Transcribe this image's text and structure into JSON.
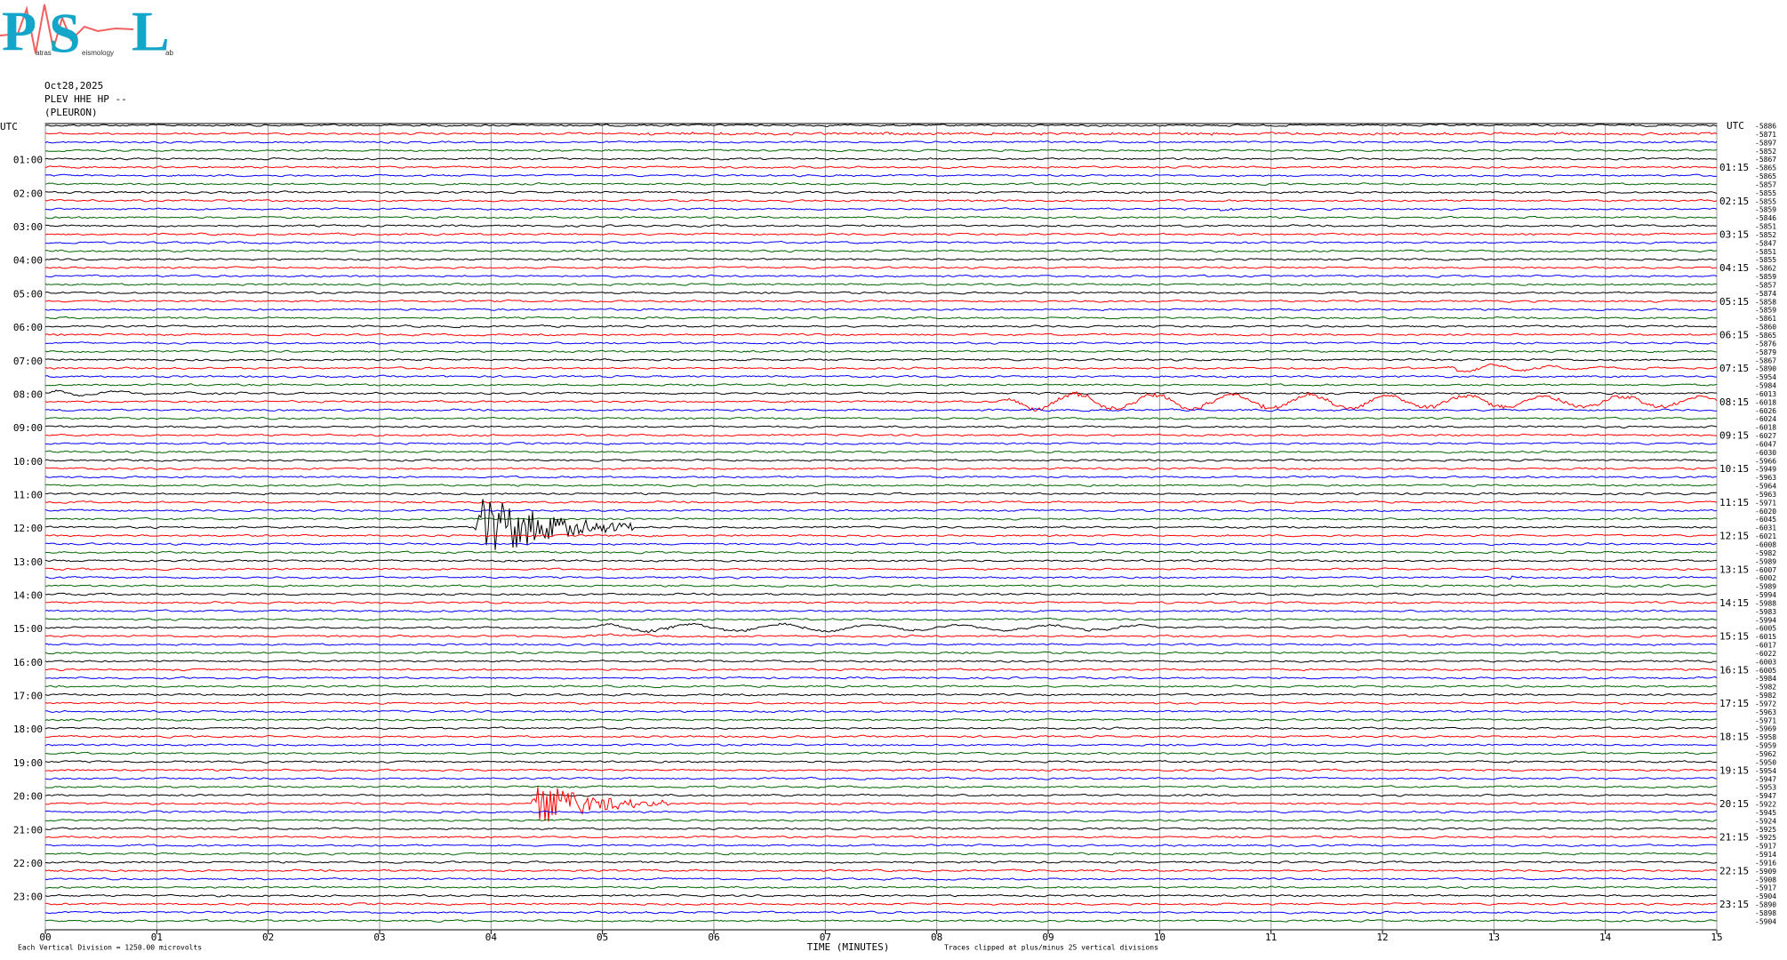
{
  "logo": {
    "letters": [
      "P",
      "S",
      "L"
    ],
    "words": [
      "atras",
      "eismology",
      "ab"
    ]
  },
  "header": {
    "date": "Oct28,2025",
    "station": "PLEV HHE HP --",
    "location": "(PLEURON)"
  },
  "left_labels": [
    "UTC",
    "01:00",
    "02:00",
    "03:00",
    "04:00",
    "05:00",
    "06:00",
    "07:00",
    "08:00",
    "09:00",
    "10:00",
    "11:00",
    "12:00",
    "13:00",
    "14:00",
    "15:00",
    "16:00",
    "17:00",
    "18:00",
    "19:00",
    "20:00",
    "21:00",
    "22:00",
    "23:00"
  ],
  "right_labels": [
    "UTC",
    "01:15",
    "02:15",
    "03:15",
    "04:15",
    "05:15",
    "06:15",
    "07:15",
    "08:15",
    "09:15",
    "10:15",
    "11:15",
    "12:15",
    "13:15",
    "14:15",
    "15:15",
    "16:15",
    "17:15",
    "18:15",
    "19:15",
    "20:15",
    "21:15",
    "22:15",
    "23:15"
  ],
  "trace_colors": [
    "#000000",
    "#ff0000",
    "#0000ff",
    "#006400"
  ],
  "trace_offsets": [
    -5886,
    -5871,
    -5897,
    -5852,
    -5867,
    -5865,
    -5865,
    -5857,
    -5855,
    -5855,
    -5859,
    -5846,
    -5851,
    -5852,
    -5847,
    -5851,
    -5855,
    -5862,
    -5859,
    -5857,
    -5874,
    -5858,
    -5859,
    -5861,
    -5860,
    -5865,
    -5876,
    -5879,
    -5867,
    -5890,
    -5954,
    -5984,
    -6013,
    -6018,
    -6026,
    -6024,
    -6018,
    -6027,
    -6047,
    -6030,
    -5966,
    -5949,
    -5963,
    -5964,
    -5963,
    -5971,
    -6020,
    -6045,
    -6031,
    -6021,
    -6008,
    -5982,
    -5989,
    -6007,
    -6002,
    -5989,
    -5994,
    -5988,
    -5983,
    -5994,
    -6005,
    -6015,
    -6017,
    -6022,
    -6003,
    -6005,
    -5984,
    -5982,
    -5982,
    -5972,
    -5963,
    -5971,
    -5969,
    -5958,
    -5959,
    -5962,
    -5950,
    -5954,
    -5947,
    -5953,
    -5947,
    -5922,
    -5945,
    -5924,
    -5925,
    -5925,
    -5917,
    -5914,
    -5916,
    -5909,
    -5908,
    -5917,
    -5904,
    -5890,
    -5898,
    -5904
  ],
  "x_axis": {
    "label": "TIME (MINUTES)",
    "lim": [
      0,
      15
    ],
    "ticks": [
      {
        "value": 0,
        "label": "00"
      },
      {
        "value": 1,
        "label": "01"
      },
      {
        "value": 2,
        "label": "02"
      },
      {
        "value": 3,
        "label": "03"
      },
      {
        "value": 4,
        "label": "04"
      },
      {
        "value": 5,
        "label": "05"
      },
      {
        "value": 6,
        "label": "06"
      },
      {
        "value": 7,
        "label": "07"
      },
      {
        "value": 8,
        "label": "08"
      },
      {
        "value": 9,
        "label": "09"
      },
      {
        "value": 10,
        "label": "10"
      },
      {
        "value": 11,
        "label": "11"
      },
      {
        "value": 12,
        "label": "12"
      },
      {
        "value": 13,
        "label": "13"
      },
      {
        "value": 14,
        "label": "14"
      },
      {
        "value": 15,
        "label": "15"
      }
    ]
  },
  "footer": {
    "scale_note": "Each Vertical Division = 1250.00 microvolts",
    "clip_note": "Traces clipped at plus/minus 25 vertical divisions"
  }
}
